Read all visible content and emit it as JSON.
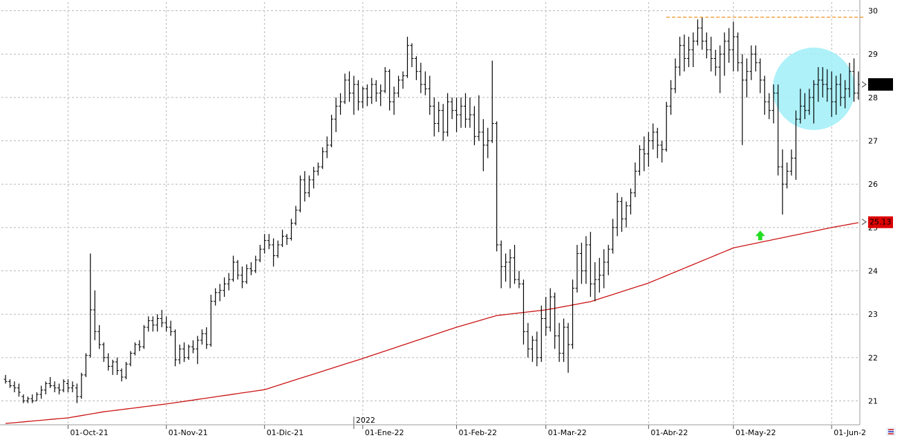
{
  "chart_data": {
    "type": "ohlc",
    "title": "",
    "ylim": [
      20.45,
      30.2
    ],
    "yticks": [
      21,
      22,
      23,
      24,
      25,
      26,
      27,
      28,
      29,
      30
    ],
    "x_labels": [
      {
        "label": "01-Oct-21",
        "index": 14
      },
      {
        "label": "01-Nov-21",
        "index": 36
      },
      {
        "label": "01-Dic-21",
        "index": 58
      },
      {
        "label": "01-Ene-22",
        "index": 80
      },
      {
        "label": "01-Feb-22",
        "index": 101
      },
      {
        "label": "01-Mar-22",
        "index": 121
      },
      {
        "label": "01-Abr-22",
        "index": 144
      },
      {
        "label": "01-May-22",
        "index": 163
      },
      {
        "label": "01-Jun-2",
        "index": 185
      }
    ],
    "year_marker": {
      "label": "2022",
      "index": 78
    },
    "price_label": "",
    "ma_label": "25.13",
    "colors": {
      "bars": "#000000",
      "ma": "#cc1111",
      "resistance": "#f0a040",
      "circle": "#a0eef8",
      "arrow": "#22dd22"
    },
    "ohlc": [
      [
        21.5,
        21.6,
        21.4,
        21.45
      ],
      [
        21.45,
        21.5,
        21.3,
        21.35
      ],
      [
        21.35,
        21.45,
        21.2,
        21.3
      ],
      [
        21.3,
        21.4,
        21.1,
        21.2
      ],
      [
        21.1,
        21.15,
        20.95,
        21.0
      ],
      [
        21.0,
        21.1,
        20.95,
        21.05
      ],
      [
        21.05,
        21.15,
        20.95,
        21.0
      ],
      [
        21.0,
        21.2,
        21.0,
        21.15
      ],
      [
        21.15,
        21.35,
        21.05,
        21.25
      ],
      [
        21.25,
        21.45,
        21.15,
        21.4
      ],
      [
        21.4,
        21.55,
        21.3,
        21.35
      ],
      [
        21.35,
        21.45,
        21.2,
        21.3
      ],
      [
        21.3,
        21.4,
        21.15,
        21.25
      ],
      [
        21.25,
        21.5,
        21.2,
        21.45
      ],
      [
        21.4,
        21.5,
        21.2,
        21.3
      ],
      [
        21.3,
        21.45,
        21.2,
        21.35
      ],
      [
        21.3,
        21.4,
        20.95,
        21.1
      ],
      [
        21.1,
        21.65,
        21.05,
        21.6
      ],
      [
        21.6,
        22.1,
        21.55,
        22.05
      ],
      [
        22.05,
        24.4,
        22.0,
        23.1
      ],
      [
        23.1,
        23.55,
        22.4,
        22.6
      ],
      [
        22.6,
        22.75,
        22.2,
        22.3
      ],
      [
        22.3,
        22.35,
        21.9,
        22.0
      ],
      [
        22.0,
        22.1,
        21.7,
        21.8
      ],
      [
        21.8,
        21.95,
        21.6,
        21.9
      ],
      [
        21.9,
        22.0,
        21.6,
        21.7
      ],
      [
        21.7,
        21.75,
        21.45,
        21.55
      ],
      [
        21.55,
        21.9,
        21.5,
        21.85
      ],
      [
        21.85,
        22.15,
        21.8,
        22.1
      ],
      [
        22.1,
        22.35,
        22.05,
        22.3
      ],
      [
        22.3,
        22.4,
        22.15,
        22.25
      ],
      [
        22.25,
        22.75,
        22.2,
        22.7
      ],
      [
        22.7,
        22.95,
        22.6,
        22.85
      ],
      [
        22.85,
        22.95,
        22.6,
        22.75
      ],
      [
        22.75,
        23.0,
        22.6,
        22.9
      ],
      [
        22.9,
        23.1,
        22.7,
        22.8
      ],
      [
        22.8,
        22.95,
        22.6,
        22.7
      ],
      [
        22.7,
        22.85,
        22.5,
        22.6
      ],
      [
        22.6,
        22.65,
        21.8,
        21.95
      ],
      [
        21.95,
        22.3,
        21.85,
        22.2
      ],
      [
        22.2,
        22.35,
        21.9,
        22.0
      ],
      [
        22.0,
        22.3,
        21.95,
        22.25
      ],
      [
        22.25,
        22.4,
        22.1,
        22.2
      ],
      [
        22.2,
        22.5,
        21.85,
        22.4
      ],
      [
        22.4,
        22.65,
        22.3,
        22.55
      ],
      [
        22.55,
        22.7,
        22.2,
        22.3
      ],
      [
        22.3,
        23.45,
        22.25,
        23.3
      ],
      [
        23.3,
        23.6,
        23.2,
        23.5
      ],
      [
        23.5,
        23.7,
        23.3,
        23.55
      ],
      [
        23.55,
        23.85,
        23.4,
        23.7
      ],
      [
        23.7,
        23.95,
        23.55,
        23.8
      ],
      [
        23.8,
        24.35,
        23.75,
        24.2
      ],
      [
        24.2,
        24.25,
        23.8,
        23.9
      ],
      [
        23.9,
        24.1,
        23.6,
        23.75
      ],
      [
        23.75,
        24.15,
        23.7,
        24.05
      ],
      [
        24.05,
        24.2,
        23.9,
        24.0
      ],
      [
        24.0,
        24.35,
        23.95,
        24.25
      ],
      [
        24.25,
        24.6,
        24.2,
        24.5
      ],
      [
        24.5,
        24.85,
        24.4,
        24.7
      ],
      [
        24.7,
        24.85,
        24.5,
        24.6
      ],
      [
        24.6,
        24.75,
        24.1,
        24.35
      ],
      [
        24.35,
        24.7,
        24.3,
        24.6
      ],
      [
        24.6,
        24.95,
        24.55,
        24.8
      ],
      [
        24.8,
        24.85,
        24.6,
        24.75
      ],
      [
        24.75,
        25.2,
        24.7,
        25.1
      ],
      [
        25.1,
        25.5,
        25.05,
        25.4
      ],
      [
        25.4,
        26.2,
        25.35,
        26.1
      ],
      [
        26.1,
        26.3,
        25.6,
        25.8
      ],
      [
        25.8,
        26.2,
        25.7,
        26.1
      ],
      [
        26.1,
        26.4,
        25.9,
        26.3
      ],
      [
        26.3,
        26.5,
        26.2,
        26.4
      ],
      [
        26.4,
        26.85,
        26.35,
        26.75
      ],
      [
        26.75,
        27.1,
        26.6,
        26.9
      ],
      [
        26.9,
        27.6,
        26.85,
        27.5
      ],
      [
        27.5,
        28.0,
        27.2,
        27.8
      ],
      [
        27.8,
        28.1,
        27.6,
        27.9
      ],
      [
        27.9,
        28.55,
        27.85,
        28.4
      ],
      [
        28.4,
        28.6,
        27.9,
        28.1
      ],
      [
        28.1,
        28.5,
        27.6,
        28.3
      ],
      [
        28.3,
        28.4,
        27.7,
        27.9
      ],
      [
        27.9,
        28.25,
        27.75,
        28.2
      ],
      [
        28.2,
        28.3,
        27.8,
        28.0
      ],
      [
        28.0,
        28.45,
        27.85,
        28.3
      ],
      [
        28.3,
        28.4,
        27.9,
        28.1
      ],
      [
        28.1,
        28.3,
        27.8,
        28.15
      ],
      [
        28.15,
        28.7,
        28.1,
        28.6
      ],
      [
        28.6,
        28.65,
        27.7,
        27.9
      ],
      [
        27.9,
        28.25,
        27.6,
        28.1
      ],
      [
        28.1,
        28.5,
        28.0,
        28.4
      ],
      [
        28.4,
        28.6,
        28.2,
        28.5
      ],
      [
        28.5,
        29.4,
        28.45,
        29.2
      ],
      [
        29.2,
        29.25,
        28.7,
        28.9
      ],
      [
        28.9,
        28.95,
        28.4,
        28.6
      ],
      [
        28.6,
        28.8,
        28.1,
        28.3
      ],
      [
        28.3,
        28.6,
        28.05,
        28.2
      ],
      [
        28.2,
        28.5,
        27.6,
        27.8
      ],
      [
        27.8,
        28.0,
        27.1,
        27.4
      ],
      [
        27.4,
        27.9,
        27.2,
        27.7
      ],
      [
        27.7,
        27.85,
        27.0,
        27.2
      ],
      [
        27.2,
        28.1,
        27.1,
        27.9
      ],
      [
        27.9,
        28.0,
        27.5,
        27.7
      ],
      [
        27.7,
        28.0,
        27.2,
        27.6
      ],
      [
        27.6,
        28.0,
        27.3,
        27.8
      ],
      [
        27.8,
        28.1,
        27.3,
        27.5
      ],
      [
        27.5,
        28.0,
        27.3,
        27.6
      ],
      [
        27.6,
        27.8,
        26.9,
        27.1
      ],
      [
        27.1,
        28.05,
        27.0,
        27.2
      ],
      [
        27.2,
        27.5,
        26.3,
        26.9
      ],
      [
        26.9,
        27.3,
        26.6,
        27.0
      ],
      [
        27.0,
        28.85,
        26.95,
        27.4
      ],
      [
        27.4,
        27.45,
        24.45,
        24.6
      ],
      [
        24.6,
        24.7,
        23.6,
        24.1
      ],
      [
        24.1,
        24.4,
        23.75,
        24.2
      ],
      [
        24.2,
        24.5,
        23.6,
        24.3
      ],
      [
        24.3,
        24.6,
        23.7,
        23.8
      ],
      [
        23.8,
        24.0,
        23.6,
        23.7
      ],
      [
        23.7,
        23.8,
        22.3,
        22.6
      ],
      [
        22.6,
        22.8,
        22.0,
        22.2
      ],
      [
        22.2,
        22.5,
        21.9,
        22.4
      ],
      [
        22.4,
        22.6,
        21.8,
        22.0
      ],
      [
        22.0,
        23.2,
        21.9,
        22.9
      ],
      [
        22.9,
        23.4,
        22.5,
        22.7
      ],
      [
        22.7,
        23.6,
        22.6,
        23.4
      ],
      [
        23.4,
        23.5,
        22.2,
        22.5
      ],
      [
        22.5,
        22.8,
        21.9,
        22.1
      ],
      [
        22.1,
        22.9,
        21.9,
        22.7
      ],
      [
        22.7,
        22.8,
        21.65,
        22.3
      ],
      [
        22.3,
        23.8,
        22.2,
        23.6
      ],
      [
        23.6,
        24.6,
        23.5,
        24.4
      ],
      [
        24.4,
        24.65,
        23.7,
        24.0
      ],
      [
        24.0,
        24.8,
        23.7,
        24.6
      ],
      [
        24.6,
        24.9,
        23.4,
        23.7
      ],
      [
        23.7,
        24.2,
        23.3,
        23.8
      ],
      [
        23.8,
        24.3,
        23.5,
        23.9
      ],
      [
        23.9,
        24.5,
        23.6,
        24.2
      ],
      [
        24.2,
        24.6,
        23.9,
        24.5
      ],
      [
        24.5,
        25.2,
        24.4,
        25.0
      ],
      [
        25.0,
        25.8,
        24.8,
        25.6
      ],
      [
        25.6,
        25.7,
        24.9,
        25.2
      ],
      [
        25.2,
        25.6,
        25.0,
        25.5
      ],
      [
        25.5,
        25.9,
        25.3,
        25.8
      ],
      [
        25.8,
        26.5,
        25.7,
        26.3
      ],
      [
        26.3,
        26.9,
        26.2,
        26.8
      ],
      [
        26.8,
        27.1,
        26.3,
        26.7
      ],
      [
        26.7,
        27.2,
        26.4,
        27.0
      ],
      [
        27.0,
        27.4,
        26.8,
        27.2
      ],
      [
        27.2,
        27.3,
        26.6,
        26.9
      ],
      [
        26.9,
        27.0,
        26.5,
        26.8
      ],
      [
        26.8,
        27.9,
        26.75,
        27.8
      ],
      [
        27.8,
        28.4,
        27.6,
        28.2
      ],
      [
        28.2,
        28.9,
        28.1,
        28.7
      ],
      [
        28.7,
        29.4,
        28.5,
        29.2
      ],
      [
        29.2,
        29.45,
        28.6,
        28.9
      ],
      [
        28.9,
        29.4,
        28.7,
        29.1
      ],
      [
        29.1,
        29.5,
        28.7,
        29.3
      ],
      [
        29.3,
        29.8,
        29.2,
        29.6
      ],
      [
        29.6,
        29.85,
        29.1,
        29.3
      ],
      [
        29.3,
        29.5,
        28.9,
        29.1
      ],
      [
        29.1,
        29.4,
        28.6,
        28.9
      ],
      [
        28.9,
        29.1,
        28.5,
        28.7
      ],
      [
        28.7,
        29.2,
        28.1,
        29.0
      ],
      [
        29.0,
        29.5,
        28.5,
        29.3
      ],
      [
        29.3,
        29.6,
        28.8,
        29.1
      ],
      [
        29.1,
        29.75,
        28.6,
        29.4
      ],
      [
        29.4,
        29.5,
        28.6,
        28.8
      ],
      [
        28.8,
        29.0,
        26.9,
        28.4
      ],
      [
        28.4,
        28.9,
        28.0,
        28.6
      ],
      [
        28.6,
        29.2,
        28.4,
        29.0
      ],
      [
        29.0,
        29.2,
        28.6,
        28.8
      ],
      [
        28.8,
        28.9,
        28.1,
        28.4
      ],
      [
        28.4,
        28.5,
        27.6,
        27.9
      ],
      [
        27.9,
        28.1,
        27.5,
        27.7
      ],
      [
        27.7,
        28.3,
        27.4,
        28.1
      ],
      [
        28.1,
        28.3,
        26.2,
        26.4
      ],
      [
        26.4,
        26.8,
        25.3,
        26.0
      ],
      [
        26.0,
        26.5,
        25.9,
        26.3
      ],
      [
        26.3,
        26.8,
        26.2,
        26.6
      ],
      [
        26.6,
        27.7,
        26.1,
        27.5
      ],
      [
        27.5,
        28.2,
        27.4,
        27.8
      ],
      [
        27.8,
        28.1,
        27.5,
        27.7
      ],
      [
        27.7,
        28.2,
        27.6,
        28.0
      ],
      [
        28.0,
        28.4,
        27.4,
        28.3
      ],
      [
        28.3,
        28.7,
        27.9,
        28.4
      ],
      [
        28.4,
        28.7,
        28.0,
        28.3
      ],
      [
        28.3,
        28.65,
        27.9,
        28.2
      ],
      [
        28.2,
        28.6,
        27.55,
        27.9
      ],
      [
        27.9,
        28.5,
        27.6,
        28.3
      ],
      [
        28.3,
        28.55,
        27.8,
        28.0
      ],
      [
        28.0,
        28.4,
        27.75,
        28.2
      ],
      [
        28.2,
        28.8,
        28.0,
        28.6
      ],
      [
        28.6,
        28.9,
        27.9,
        28.1
      ],
      [
        28.1,
        28.6,
        27.95,
        28.3
      ]
    ],
    "ma": [
      {
        "i": 0,
        "v": 20.48
      },
      {
        "i": 14,
        "v": 20.61
      },
      {
        "i": 22,
        "v": 20.75
      },
      {
        "i": 36,
        "v": 20.93
      },
      {
        "i": 58,
        "v": 21.26
      },
      {
        "i": 80,
        "v": 21.98
      },
      {
        "i": 101,
        "v": 22.7
      },
      {
        "i": 110,
        "v": 22.97
      },
      {
        "i": 121,
        "v": 23.1
      },
      {
        "i": 131,
        "v": 23.29
      },
      {
        "i": 144,
        "v": 23.72
      },
      {
        "i": 163,
        "v": 24.53
      },
      {
        "i": 185,
        "v": 25.0
      },
      {
        "i": 192,
        "v": 25.13
      }
    ],
    "resistance": {
      "value": 29.85,
      "from_index": 148,
      "to_index": 192
    },
    "circle": {
      "center_index": 181,
      "center_value": 28.2,
      "radius_value": 0.95
    },
    "arrow_annotation": {
      "index": 169,
      "value": 24.85
    }
  }
}
